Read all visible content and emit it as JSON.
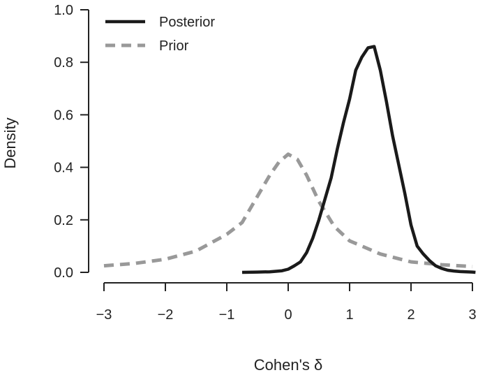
{
  "chart_data": {
    "type": "line",
    "xlabel": "Cohen's δ",
    "ylabel": "Density",
    "xlim": [
      -3,
      3
    ],
    "ylim": [
      0,
      1
    ],
    "x_ticks": [
      -3,
      -2,
      -1,
      0,
      1,
      2,
      3
    ],
    "y_ticks": [
      0.0,
      0.2,
      0.4,
      0.6,
      0.8,
      1.0
    ],
    "x_tick_labels": [
      "−3",
      "−2",
      "−1",
      "0",
      "1",
      "2",
      "3"
    ],
    "y_tick_labels": [
      "0.0",
      "0.2",
      "0.4",
      "0.6",
      "0.8",
      "1.0"
    ],
    "grid": false,
    "legend_position": "top-left",
    "series": [
      {
        "name": "Posterior",
        "style": "solid",
        "color": "#1a1a1a",
        "x": [
          -0.75,
          -0.5,
          -0.3,
          -0.1,
          0.0,
          0.1,
          0.2,
          0.3,
          0.4,
          0.5,
          0.6,
          0.7,
          0.8,
          0.9,
          1.0,
          1.1,
          1.2,
          1.3,
          1.4,
          1.5,
          1.6,
          1.7,
          1.8,
          1.9,
          2.0,
          2.1,
          2.2,
          2.3,
          2.4,
          2.5,
          2.6,
          2.7,
          2.8,
          2.9,
          3.0,
          3.05
        ],
        "y": [
          0.0,
          0.001,
          0.002,
          0.006,
          0.012,
          0.025,
          0.04,
          0.075,
          0.13,
          0.2,
          0.28,
          0.36,
          0.47,
          0.57,
          0.66,
          0.77,
          0.82,
          0.855,
          0.86,
          0.77,
          0.65,
          0.52,
          0.41,
          0.3,
          0.18,
          0.1,
          0.07,
          0.045,
          0.025,
          0.015,
          0.008,
          0.005,
          0.003,
          0.002,
          0.001,
          0.0
        ]
      },
      {
        "name": "Prior",
        "style": "dashed",
        "color": "#999999",
        "x": [
          -3.0,
          -2.5,
          -2.0,
          -1.5,
          -1.0,
          -0.75,
          -0.5,
          -0.3,
          -0.15,
          0.0,
          0.15,
          0.3,
          0.5,
          0.75,
          1.0,
          1.5,
          2.0,
          2.5,
          3.0
        ],
        "y": [
          0.025,
          0.034,
          0.05,
          0.081,
          0.145,
          0.19,
          0.29,
          0.37,
          0.42,
          0.45,
          0.43,
          0.37,
          0.27,
          0.175,
          0.12,
          0.07,
          0.04,
          0.029,
          0.022
        ]
      }
    ]
  }
}
